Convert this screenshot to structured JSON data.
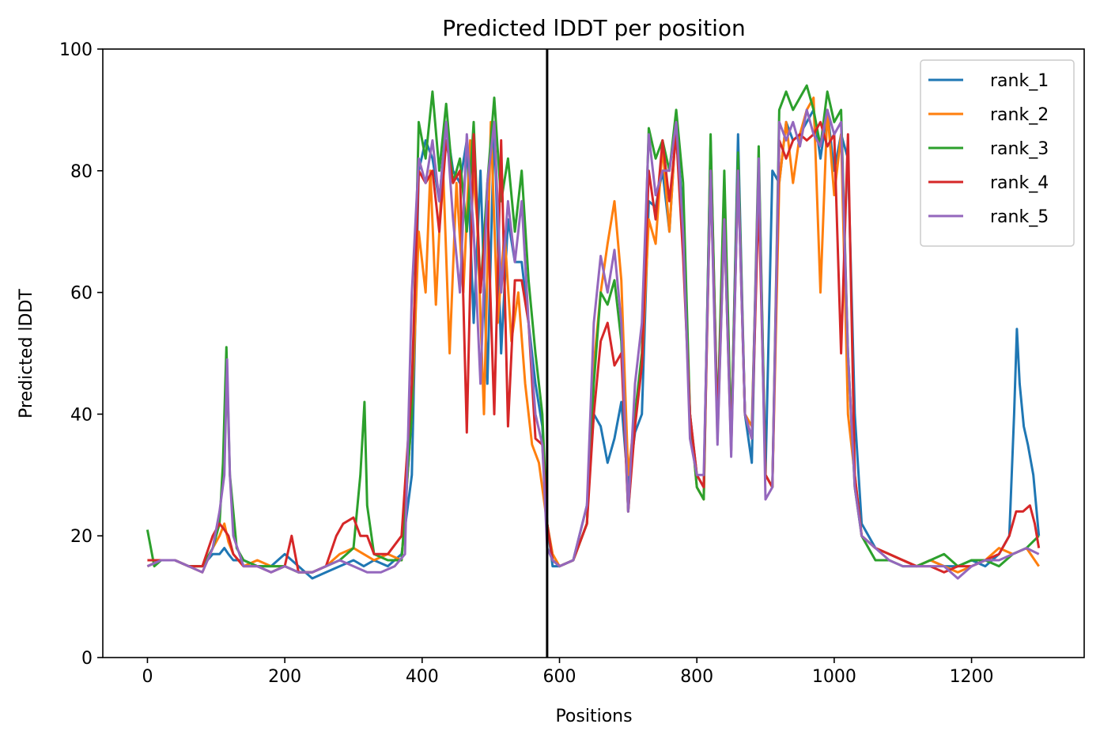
{
  "chart_data": {
    "type": "line",
    "title": "Predicted lDDT per position",
    "xlabel": "Positions",
    "ylabel": "Predicted lDDT",
    "xlim": [
      -65,
      1364
    ],
    "ylim": [
      0,
      100
    ],
    "xticks": [
      0,
      200,
      400,
      600,
      800,
      1000,
      1200
    ],
    "yticks": [
      0,
      20,
      40,
      60,
      80,
      100
    ],
    "xtick_labels": [
      "0",
      "200",
      "400",
      "600",
      "800",
      "1000",
      "1200"
    ],
    "ytick_labels": [
      "0",
      "20",
      "40",
      "60",
      "80",
      "100"
    ],
    "grid": false,
    "legend_position": "top-right",
    "vline_x": 582,
    "series": [
      {
        "name": "rank_1",
        "color": "#1f77b4",
        "x": [
          0,
          20,
          40,
          60,
          80,
          95,
          105,
          112,
          118,
          125,
          140,
          160,
          180,
          200,
          220,
          240,
          260,
          280,
          300,
          315,
          330,
          350,
          370,
          385,
          395,
          405,
          415,
          425,
          435,
          445,
          455,
          465,
          475,
          485,
          495,
          505,
          515,
          525,
          535,
          545,
          555,
          565,
          575,
          582,
          590,
          600,
          620,
          640,
          650,
          660,
          670,
          680,
          690,
          700,
          710,
          720,
          730,
          740,
          750,
          760,
          770,
          780,
          790,
          800,
          810,
          820,
          830,
          840,
          850,
          860,
          870,
          880,
          890,
          900,
          910,
          920,
          930,
          940,
          950,
          960,
          970,
          980,
          990,
          1000,
          1010,
          1020,
          1030,
          1040,
          1060,
          1080,
          1100,
          1120,
          1140,
          1160,
          1180,
          1200,
          1220,
          1240,
          1255,
          1262,
          1266,
          1270,
          1276,
          1282,
          1290,
          1298
        ],
        "y": [
          15,
          16,
          16,
          15,
          15,
          17,
          17,
          18,
          17,
          16,
          16,
          15,
          15,
          17,
          15,
          13,
          14,
          15,
          16,
          15,
          16,
          15,
          17,
          30,
          80,
          85,
          82,
          75,
          88,
          80,
          78,
          85,
          55,
          80,
          45,
          88,
          50,
          72,
          65,
          65,
          55,
          45,
          38,
          22,
          15,
          15,
          16,
          25,
          40,
          38,
          32,
          36,
          42,
          28,
          37,
          40,
          75,
          74,
          80,
          70,
          88,
          72,
          40,
          30,
          28,
          85,
          38,
          76,
          35,
          86,
          40,
          32,
          82,
          30,
          80,
          78,
          88,
          85,
          86,
          88,
          90,
          82,
          90,
          80,
          86,
          82,
          40,
          22,
          18,
          17,
          16,
          15,
          16,
          15,
          15,
          16,
          15,
          17,
          20,
          40,
          54,
          45,
          38,
          35,
          30,
          20
        ]
      },
      {
        "name": "rank_2",
        "color": "#ff7f0e",
        "x": [
          0,
          20,
          40,
          60,
          80,
          95,
          105,
          112,
          118,
          125,
          140,
          160,
          180,
          200,
          220,
          240,
          260,
          280,
          300,
          315,
          330,
          350,
          370,
          385,
          395,
          405,
          412,
          420,
          430,
          440,
          450,
          460,
          470,
          480,
          490,
          500,
          510,
          520,
          530,
          540,
          550,
          560,
          570,
          582,
          590,
          600,
          620,
          640,
          650,
          660,
          670,
          680,
          690,
          700,
          710,
          720,
          730,
          740,
          750,
          760,
          770,
          780,
          790,
          800,
          810,
          820,
          830,
          840,
          850,
          860,
          870,
          880,
          890,
          900,
          910,
          920,
          930,
          940,
          950,
          960,
          970,
          980,
          990,
          1000,
          1010,
          1020,
          1030,
          1040,
          1060,
          1080,
          1100,
          1120,
          1140,
          1160,
          1180,
          1200,
          1220,
          1240,
          1260,
          1280,
          1298
        ],
        "y": [
          15,
          16,
          16,
          15,
          14,
          18,
          20,
          22,
          19,
          17,
          15,
          16,
          15,
          15,
          14,
          14,
          15,
          17,
          18,
          17,
          16,
          17,
          16,
          40,
          70,
          60,
          80,
          58,
          82,
          50,
          78,
          60,
          85,
          72,
          40,
          88,
          55,
          70,
          52,
          60,
          45,
          35,
          32,
          22,
          17,
          15,
          16,
          22,
          48,
          60,
          68,
          75,
          62,
          30,
          40,
          48,
          72,
          68,
          84,
          70,
          88,
          68,
          40,
          28,
          26,
          82,
          36,
          72,
          35,
          82,
          40,
          38,
          80,
          30,
          28,
          78,
          88,
          78,
          86,
          90,
          92,
          60,
          90,
          76,
          86,
          40,
          30,
          20,
          18,
          17,
          16,
          15,
          16,
          15,
          14,
          15,
          16,
          18,
          17,
          18,
          15
        ]
      },
      {
        "name": "rank_3",
        "color": "#2ca02c",
        "x": [
          0,
          10,
          20,
          40,
          60,
          80,
          95,
          105,
          110,
          115,
          120,
          130,
          140,
          160,
          180,
          200,
          220,
          240,
          260,
          280,
          300,
          310,
          316,
          320,
          330,
          350,
          370,
          385,
          395,
          405,
          415,
          425,
          435,
          445,
          455,
          465,
          475,
          485,
          495,
          505,
          515,
          525,
          535,
          545,
          555,
          565,
          575,
          582,
          590,
          600,
          620,
          640,
          650,
          660,
          670,
          680,
          690,
          700,
          710,
          720,
          730,
          740,
          750,
          760,
          770,
          780,
          790,
          800,
          810,
          820,
          830,
          840,
          850,
          860,
          870,
          880,
          890,
          900,
          910,
          920,
          930,
          940,
          950,
          960,
          970,
          980,
          990,
          1000,
          1010,
          1020,
          1030,
          1040,
          1060,
          1080,
          1100,
          1120,
          1140,
          1160,
          1180,
          1200,
          1220,
          1240,
          1260,
          1280,
          1298
        ],
        "y": [
          21,
          15,
          16,
          16,
          15,
          15,
          18,
          22,
          32,
          51,
          30,
          18,
          16,
          15,
          15,
          15,
          14,
          14,
          15,
          16,
          18,
          30,
          42,
          25,
          17,
          16,
          16,
          40,
          88,
          82,
          93,
          80,
          91,
          78,
          82,
          70,
          88,
          60,
          78,
          92,
          75,
          82,
          70,
          80,
          62,
          50,
          40,
          22,
          16,
          15,
          16,
          22,
          45,
          60,
          58,
          62,
          52,
          24,
          40,
          50,
          87,
          82,
          85,
          80,
          90,
          78,
          40,
          28,
          26,
          86,
          38,
          80,
          36,
          83,
          40,
          36,
          84,
          30,
          28,
          90,
          93,
          90,
          92,
          94,
          90,
          84,
          93,
          88,
          90,
          50,
          28,
          20,
          16,
          16,
          15,
          15,
          16,
          17,
          15,
          16,
          16,
          15,
          17,
          18,
          20
        ]
      },
      {
        "name": "rank_4",
        "color": "#d62728",
        "x": [
          0,
          20,
          40,
          60,
          80,
          95,
          105,
          112,
          118,
          125,
          140,
          160,
          180,
          200,
          210,
          220,
          240,
          260,
          275,
          285,
          300,
          310,
          320,
          330,
          350,
          370,
          385,
          395,
          405,
          415,
          425,
          435,
          445,
          455,
          465,
          475,
          485,
          495,
          505,
          515,
          525,
          535,
          545,
          555,
          565,
          575,
          582,
          590,
          600,
          620,
          640,
          650,
          660,
          670,
          680,
          690,
          700,
          710,
          720,
          730,
          740,
          750,
          760,
          770,
          780,
          790,
          800,
          810,
          820,
          830,
          840,
          850,
          860,
          870,
          880,
          890,
          900,
          910,
          920,
          930,
          940,
          950,
          960,
          970,
          980,
          990,
          1000,
          1010,
          1020,
          1030,
          1040,
          1060,
          1080,
          1100,
          1120,
          1140,
          1160,
          1180,
          1200,
          1220,
          1240,
          1255,
          1265,
          1275,
          1285,
          1292,
          1298
        ],
        "y": [
          16,
          16,
          16,
          15,
          15,
          20,
          22,
          21,
          20,
          17,
          15,
          15,
          14,
          15,
          20,
          14,
          14,
          15,
          20,
          22,
          23,
          20,
          20,
          17,
          17,
          20,
          45,
          80,
          78,
          80,
          70,
          85,
          78,
          80,
          37,
          86,
          60,
          75,
          40,
          85,
          38,
          62,
          62,
          55,
          36,
          35,
          22,
          16,
          15,
          16,
          22,
          40,
          52,
          55,
          48,
          50,
          24,
          38,
          48,
          80,
          72,
          85,
          75,
          86,
          66,
          40,
          30,
          28,
          80,
          38,
          72,
          34,
          80,
          40,
          36,
          76,
          30,
          28,
          85,
          82,
          85,
          86,
          85,
          86,
          88,
          84,
          86,
          50,
          86,
          30,
          20,
          18,
          17,
          16,
          15,
          15,
          14,
          15,
          15,
          16,
          17,
          20,
          24,
          24,
          25,
          22,
          18
        ]
      },
      {
        "name": "rank_5",
        "color": "#9467bd",
        "x": [
          0,
          20,
          40,
          60,
          80,
          95,
          105,
          112,
          116,
          120,
          125,
          140,
          160,
          180,
          200,
          220,
          240,
          260,
          280,
          300,
          320,
          340,
          360,
          375,
          385,
          395,
          405,
          415,
          425,
          435,
          445,
          455,
          465,
          475,
          485,
          495,
          505,
          515,
          525,
          535,
          545,
          555,
          565,
          575,
          582,
          590,
          600,
          620,
          640,
          650,
          660,
          670,
          680,
          690,
          700,
          710,
          720,
          730,
          740,
          750,
          760,
          770,
          780,
          790,
          800,
          810,
          820,
          830,
          840,
          850,
          860,
          870,
          880,
          890,
          900,
          910,
          920,
          930,
          940,
          950,
          960,
          970,
          980,
          990,
          1000,
          1010,
          1020,
          1030,
          1040,
          1060,
          1080,
          1100,
          1120,
          1140,
          1160,
          1180,
          1200,
          1220,
          1240,
          1260,
          1280,
          1298
        ],
        "y": [
          15,
          16,
          16,
          15,
          14,
          18,
          24,
          30,
          49,
          30,
          20,
          15,
          15,
          14,
          15,
          14,
          14,
          15,
          16,
          15,
          14,
          14,
          15,
          17,
          60,
          82,
          78,
          85,
          75,
          88,
          72,
          60,
          86,
          70,
          45,
          78,
          88,
          60,
          75,
          65,
          75,
          55,
          40,
          35,
          18,
          16,
          15,
          16,
          25,
          55,
          66,
          60,
          67,
          55,
          24,
          45,
          55,
          86,
          76,
          80,
          80,
          88,
          70,
          36,
          30,
          30,
          80,
          35,
          72,
          33,
          80,
          40,
          36,
          82,
          26,
          28,
          88,
          85,
          88,
          84,
          90,
          86,
          84,
          90,
          86,
          88,
          50,
          28,
          20,
          18,
          16,
          15,
          15,
          15,
          15,
          13,
          15,
          16,
          16,
          17,
          18,
          17
        ]
      }
    ]
  }
}
